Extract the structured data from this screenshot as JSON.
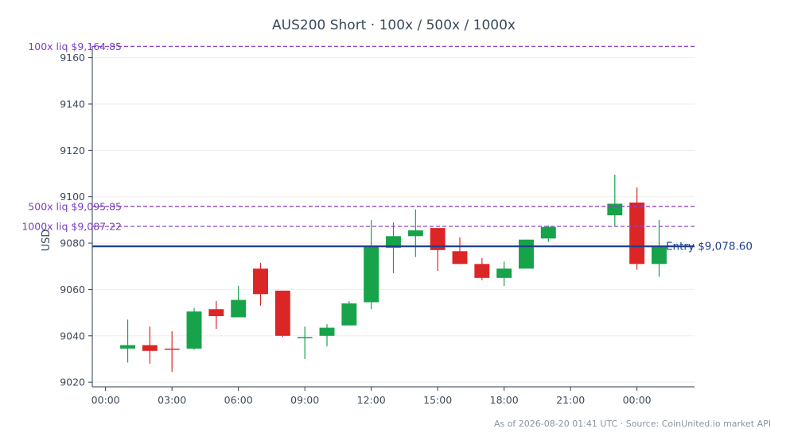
{
  "chart_data": {
    "type": "candlestick",
    "title": "AUS200 Short · 100x / 500x / 1000x",
    "xlabel": "",
    "ylabel": "USD",
    "ylim": [
      9018,
      9165
    ],
    "y_ticks": [
      9020,
      9040,
      9060,
      9080,
      9100,
      9120,
      9140,
      9160
    ],
    "x_ticks": [
      {
        "index": 0,
        "label": "00:00"
      },
      {
        "index": 3,
        "label": "03:00"
      },
      {
        "index": 6,
        "label": "06:00"
      },
      {
        "index": 9,
        "label": "09:00"
      },
      {
        "index": 12,
        "label": "12:00"
      },
      {
        "index": 15,
        "label": "15:00"
      },
      {
        "index": 18,
        "label": "18:00"
      },
      {
        "index": 21,
        "label": "21:00"
      },
      {
        "index": 24,
        "label": "00:00"
      }
    ],
    "candles": [
      {
        "i": 1,
        "open": 9034.5,
        "high": 9047.0,
        "low": 9028.5,
        "close": 9036.0
      },
      {
        "i": 2,
        "open": 9036.0,
        "high": 9044.0,
        "low": 9028.0,
        "close": 9033.5
      },
      {
        "i": 3,
        "open": 9034.5,
        "high": 9042.0,
        "low": 9024.5,
        "close": 9034.0
      },
      {
        "i": 4,
        "open": 9034.5,
        "high": 9052.0,
        "low": 9034.0,
        "close": 9050.5
      },
      {
        "i": 5,
        "open": 9051.5,
        "high": 9055.0,
        "low": 9043.0,
        "close": 9048.5
      },
      {
        "i": 6,
        "open": 9048.0,
        "high": 9061.5,
        "low": 9048.0,
        "close": 9055.5
      },
      {
        "i": 7,
        "open": 9069.0,
        "high": 9071.5,
        "low": 9053.0,
        "close": 9058.0
      },
      {
        "i": 8,
        "open": 9059.5,
        "high": 9059.5,
        "low": 9039.5,
        "close": 9040.0
      },
      {
        "i": 9,
        "open": 9039.0,
        "high": 9044.0,
        "low": 9030.0,
        "close": 9039.5
      },
      {
        "i": 10,
        "open": 9040.0,
        "high": 9045.0,
        "low": 9035.5,
        "close": 9043.5
      },
      {
        "i": 11,
        "open": 9044.5,
        "high": 9055.0,
        "low": 9044.5,
        "close": 9054.0
      },
      {
        "i": 12,
        "open": 9054.5,
        "high": 9090.0,
        "low": 9051.5,
        "close": 9078.5
      },
      {
        "i": 13,
        "open": 9078.0,
        "high": 9089.0,
        "low": 9067.0,
        "close": 9083.0
      },
      {
        "i": 14,
        "open": 9083.0,
        "high": 9094.5,
        "low": 9074.0,
        "close": 9085.5
      },
      {
        "i": 15,
        "open": 9086.5,
        "high": 9086.5,
        "low": 9068.0,
        "close": 9077.0
      },
      {
        "i": 16,
        "open": 9076.5,
        "high": 9082.5,
        "low": 9071.0,
        "close": 9071.0
      },
      {
        "i": 17,
        "open": 9071.0,
        "high": 9073.5,
        "low": 9064.0,
        "close": 9065.0
      },
      {
        "i": 18,
        "open": 9065.0,
        "high": 9072.0,
        "low": 9061.5,
        "close": 9069.0
      },
      {
        "i": 19,
        "open": 9069.0,
        "high": 9081.5,
        "low": 9069.0,
        "close": 9081.5
      },
      {
        "i": 20,
        "open": 9082.0,
        "high": 9087.5,
        "low": 9080.5,
        "close": 9087.0
      },
      {
        "i": 23,
        "open": 9092.0,
        "high": 9109.5,
        "low": 9087.5,
        "close": 9097.0
      },
      {
        "i": 24,
        "open": 9097.5,
        "high": 9104.0,
        "low": 9068.5,
        "close": 9071.0
      },
      {
        "i": 25,
        "open": 9071.0,
        "high": 9090.0,
        "low": 9065.5,
        "close": 9078.5
      }
    ],
    "x_index_range": [
      -0.6,
      26.6
    ],
    "levels": [
      {
        "name": "liq_100x",
        "value": 9164.85,
        "label": "100x liq $9,164.85",
        "color": "#8e44c8",
        "style": "dashed"
      },
      {
        "name": "liq_500x",
        "value": 9095.85,
        "label": "500x liq $9,095.85",
        "color": "#8e44c8",
        "style": "dashed"
      },
      {
        "name": "liq_1000x",
        "value": 9087.22,
        "label": "1000x liq $9,087.22",
        "color": "#8e44c8",
        "style": "dashed"
      },
      {
        "name": "entry",
        "value": 9078.6,
        "label": "Entry $9,078.60",
        "color": "#1f3f8f",
        "style": "solid"
      }
    ],
    "colors": {
      "up": "#16a34a",
      "down": "#dc2626",
      "axis": "#2e3e50",
      "grid": "#eeeeee"
    },
    "grid": true,
    "footer": "As of 2026-08-20 01:41 UTC · Source: CoinUnited.io market API"
  }
}
